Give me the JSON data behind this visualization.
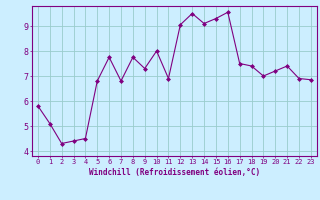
{
  "x": [
    0,
    1,
    2,
    3,
    4,
    5,
    6,
    7,
    8,
    9,
    10,
    11,
    12,
    13,
    14,
    15,
    16,
    17,
    18,
    19,
    20,
    21,
    22,
    23
  ],
  "y": [
    5.8,
    5.1,
    4.3,
    4.4,
    4.5,
    6.8,
    7.75,
    6.8,
    7.75,
    7.3,
    8.0,
    6.9,
    9.05,
    9.5,
    9.1,
    9.3,
    9.55,
    7.5,
    7.4,
    7.0,
    7.2,
    7.4,
    6.9,
    6.85
  ],
  "xlabel": "Windchill (Refroidissement éolien,°C)",
  "ylim": [
    3.8,
    9.8
  ],
  "xlim": [
    -0.5,
    23.5
  ],
  "yticks": [
    4,
    5,
    6,
    7,
    8,
    9
  ],
  "xticks": [
    0,
    1,
    2,
    3,
    4,
    5,
    6,
    7,
    8,
    9,
    10,
    11,
    12,
    13,
    14,
    15,
    16,
    17,
    18,
    19,
    20,
    21,
    22,
    23
  ],
  "line_color": "#800080",
  "marker_color": "#800080",
  "bg_color": "#cceeff",
  "grid_color": "#99cccc",
  "axis_color": "#800080",
  "label_color": "#800080",
  "tick_label_color": "#800080",
  "xlabel_fontsize": 5.5,
  "ytick_fontsize": 6.0,
  "xtick_fontsize": 5.0,
  "linewidth": 0.8,
  "markersize": 2.0
}
